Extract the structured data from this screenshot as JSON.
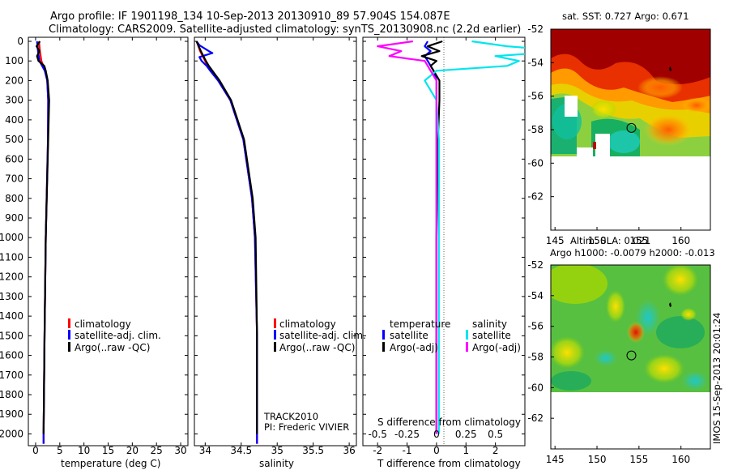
{
  "titles": {
    "line1": "Argo profile: IF 1901198_134 10-Sep-2013 20130910_89 57.904S 154.087E",
    "line2": "Climatology: CARS2009. Satellite-adjusted climatology: synTS_20130908.nc (2.2d earlier)"
  },
  "stamp": "IMOS 15-Sep-2013 20:01:24",
  "colors": {
    "climatology": "#ff0000",
    "satellite": "#0000ff",
    "argo": "#000000",
    "sat_salinity": "#00e5ee",
    "argo_salinity": "#ff00ff",
    "circle": "#000000"
  },
  "chart_data": [
    {
      "type": "line",
      "panel": "temperature",
      "xlabel": "temperature (deg C)",
      "xlim": [
        -1.5,
        31.5
      ],
      "xticks": [
        0,
        5,
        10,
        15,
        20,
        25,
        30
      ],
      "ylim": [
        2060,
        0
      ],
      "yticks": [
        0,
        100,
        200,
        300,
        400,
        500,
        600,
        700,
        800,
        900,
        1000,
        1100,
        1200,
        1300,
        1400,
        1500,
        1600,
        1700,
        1800,
        1900,
        2000
      ],
      "legend": [
        "climatology",
        "satellite-adj. clim.",
        "Argo(..raw -QC)"
      ],
      "series": [
        {
          "name": "climatology",
          "depth": [
            0,
            50,
            100,
            150,
            200,
            300,
            500,
            1000,
            1500,
            2000,
            2050
          ],
          "value": [
            0.7,
            0.9,
            1.2,
            2.0,
            2.4,
            2.6,
            2.55,
            2.1,
            1.85,
            1.65,
            1.65
          ]
        },
        {
          "name": "satellite-adj. clim.",
          "depth": [
            0,
            50,
            100,
            150,
            200,
            300,
            500,
            1000,
            1500,
            2000,
            2050
          ],
          "value": [
            0.3,
            0.5,
            0.8,
            1.9,
            2.4,
            2.6,
            2.55,
            2.1,
            1.85,
            1.65,
            1.65
          ]
        },
        {
          "name": "Argo(..raw -QC)",
          "depth": [
            0,
            25,
            50,
            75,
            100,
            125,
            150,
            200,
            300,
            400,
            500,
            700,
            1000,
            1500,
            2000
          ],
          "value": [
            0.9,
            0.2,
            0.8,
            0.3,
            0.6,
            1.8,
            2.1,
            2.5,
            2.8,
            2.7,
            2.6,
            2.4,
            2.1,
            1.85,
            1.65
          ]
        }
      ]
    },
    {
      "type": "line",
      "panel": "salinity",
      "xlabel": "salinity",
      "xlim": [
        33.85,
        36.1
      ],
      "xticks": [
        34,
        34.5,
        35,
        35.5,
        36
      ],
      "xticklabels": [
        "34",
        "34.5",
        "35",
        "35.5",
        "36"
      ],
      "ylim": [
        2060,
        0
      ],
      "legend": [
        "climatology",
        "satellite-adj. clim.",
        "Argo(..raw -QC)"
      ],
      "annotation": [
        "TRACK2010",
        "PI: Frederic VIVIER"
      ],
      "series": [
        {
          "name": "climatology",
          "depth": [
            0,
            50,
            100,
            125,
            150,
            200,
            300,
            500,
            800,
            1000,
            1500,
            2000,
            2050
          ],
          "value": [
            33.88,
            33.93,
            34.0,
            34.03,
            34.07,
            34.18,
            34.35,
            34.53,
            34.65,
            34.69,
            34.72,
            34.72,
            34.72
          ]
        },
        {
          "name": "satellite-adj. clim.",
          "depth": [
            0,
            20,
            50,
            60,
            80,
            100,
            125,
            150,
            200,
            300,
            500,
            800,
            1000,
            1500,
            2000,
            2050
          ],
          "value": [
            33.88,
            33.92,
            34.05,
            34.1,
            33.92,
            33.95,
            34.02,
            34.07,
            34.18,
            34.35,
            34.53,
            34.65,
            34.69,
            34.72,
            34.72,
            34.72
          ]
        },
        {
          "name": "Argo(..raw -QC)",
          "depth": [
            0,
            50,
            100,
            125,
            150,
            200,
            300,
            500,
            800,
            1000,
            1500,
            2000
          ],
          "value": [
            33.88,
            33.94,
            34.01,
            34.05,
            34.1,
            34.2,
            34.36,
            34.54,
            34.66,
            34.7,
            34.72,
            34.72
          ]
        }
      ]
    },
    {
      "type": "line",
      "panel": "differences",
      "xlabel": "T difference from climatology",
      "xlabel_top": "S difference from climatology",
      "xlim": [
        -2.5,
        3.0
      ],
      "xticks": [
        -2,
        -1,
        0,
        1,
        2
      ],
      "xticks_top": [
        -0.5,
        -0.25,
        0,
        0.25,
        0.5
      ],
      "ylim": [
        2060,
        0
      ],
      "legend": {
        "temperature_heading": "temperature",
        "salinity_heading": "salinity",
        "temperature": [
          "satellite",
          "Argo(-adj)"
        ],
        "salinity": [
          "satellite",
          "Argo(-adj)"
        ]
      },
      "series": [
        {
          "name": "temperature satellite",
          "depth": [
            0,
            25,
            50,
            75,
            100,
            150,
            200,
            300,
            500,
            1000,
            1500,
            2000
          ],
          "value": [
            -0.3,
            -0.4,
            -0.2,
            -0.4,
            -0.3,
            -0.1,
            0,
            0,
            0,
            0,
            0,
            0
          ]
        },
        {
          "name": "temperature Argo(-adj)",
          "depth": [
            0,
            25,
            50,
            75,
            100,
            125,
            150,
            200,
            300,
            500,
            1000,
            1500,
            2000
          ],
          "value": [
            0.2,
            -0.3,
            0.1,
            -0.5,
            0.0,
            -0.2,
            -0.1,
            0.1,
            0.1,
            0.05,
            0,
            0,
            0
          ]
        },
        {
          "name": "salinity satellite",
          "depth": [
            0,
            25,
            50,
            75,
            100,
            125,
            150,
            200,
            300,
            500,
            1000,
            1500,
            2000
          ],
          "value": [
            0.3,
            0.6,
            1.1,
            0.5,
            0.7,
            0.6,
            0.0,
            -0.1,
            0.0,
            0.02,
            0.02,
            0.02,
            0.02
          ]
        },
        {
          "name": "salinity Argo(-adj)",
          "depth": [
            0,
            25,
            50,
            75,
            100,
            200,
            300,
            500,
            1000,
            1500,
            2000
          ],
          "value": [
            -0.2,
            -0.5,
            -0.3,
            -0.4,
            -0.1,
            0.0,
            0.0,
            0.0,
            0.0,
            0.0,
            0.0
          ]
        }
      ]
    },
    {
      "type": "heatmap",
      "panel": "sst_map",
      "title": "sat. SST: 0.727 Argo: 0.671",
      "xlim": [
        144.5,
        163.5
      ],
      "ylim": [
        -64,
        -52
      ],
      "xticks": [
        145,
        150,
        155,
        160
      ],
      "yticks": [
        -52,
        -54,
        -56,
        -58,
        -60,
        -62
      ],
      "data_extent_lat": [
        -60,
        -52
      ],
      "argo_position": {
        "lat": -57.9,
        "lon": 154.1
      }
    },
    {
      "type": "heatmap",
      "panel": "sla_map",
      "title": "Altim. SLA: 0.021",
      "subtitle": "Argo h1000: -0.0079 h2000: -0.013",
      "xlim": [
        144.5,
        163.5
      ],
      "ylim": [
        -64,
        -52
      ],
      "xticks": [
        145,
        150,
        155,
        160
      ],
      "yticks": [
        -52,
        -54,
        -56,
        -58,
        -60,
        -62
      ],
      "data_extent_lat": [
        -60,
        -52
      ],
      "argo_position": {
        "lat": -57.9,
        "lon": 154.1
      }
    }
  ]
}
